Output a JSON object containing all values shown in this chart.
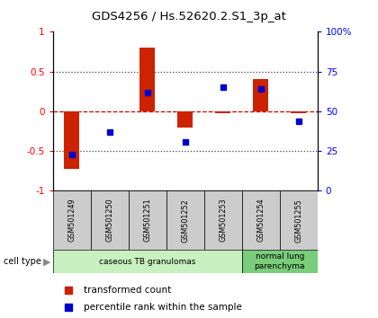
{
  "title": "GDS4256 / Hs.52620.2.S1_3p_at",
  "samples": [
    "GSM501249",
    "GSM501250",
    "GSM501251",
    "GSM501252",
    "GSM501253",
    "GSM501254",
    "GSM501255"
  ],
  "red_bars": [
    -0.72,
    0.0,
    0.8,
    -0.2,
    -0.02,
    0.4,
    -0.02
  ],
  "blue_pct": [
    23,
    37,
    62,
    31,
    65,
    64,
    44
  ],
  "ylim_left": [
    -1,
    1
  ],
  "yticks_left": [
    -1,
    -0.5,
    0,
    0.5,
    1
  ],
  "ytick_labels_left": [
    "-1",
    "-0.5",
    "0",
    "0.5",
    "1"
  ],
  "yticks_right": [
    0,
    25,
    50,
    75,
    100
  ],
  "ytick_labels_right": [
    "0",
    "25",
    "50",
    "75",
    "100%"
  ],
  "cell_type_groups": [
    {
      "label": "caseous TB granulomas",
      "start": 0,
      "end": 5,
      "color": "#c8f0c0"
    },
    {
      "label": "normal lung\nparenchyma",
      "start": 5,
      "end": 7,
      "color": "#7acd7a"
    }
  ],
  "bar_color": "#cc2200",
  "square_color": "#0000cc",
  "hline_color": "#cc0000",
  "dotted_color": "#444444",
  "bg_color": "#ffffff",
  "tick_label_bg": "#cccccc",
  "legend_red": "#cc2200",
  "legend_blue": "#0000cc",
  "bar_width": 0.4
}
